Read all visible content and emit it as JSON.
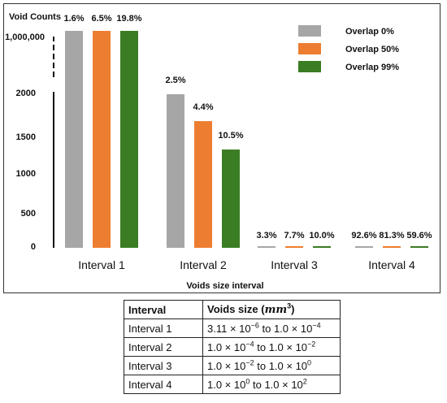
{
  "chart_data": {
    "type": "bar",
    "ylabel": "Void Counts",
    "xlabel": "Voids size interval",
    "y_ticks": [
      "1,000,000",
      "2000",
      "1500",
      "1000",
      "500",
      "0"
    ],
    "y_axis_broken": true,
    "categories": [
      "Interval 1",
      "Interval 2",
      "Interval 3",
      "Interval 4"
    ],
    "legend_position": "top-right",
    "series": [
      {
        "name": "Overlap 0%",
        "color": "#a6a6a6",
        "labels": [
          "1.6%",
          "2.5%",
          "3.3%",
          "92.6%"
        ],
        "values": [
          1000000,
          2000,
          3,
          10
        ]
      },
      {
        "name": "Overlap 50%",
        "color": "#ed7d31",
        "labels": [
          "6.5%",
          "4.4%",
          "7.7%",
          "81.3%"
        ],
        "values": [
          1000000,
          1650,
          5,
          13
        ]
      },
      {
        "name": "Overlap 99%",
        "color": "#3a7d22",
        "labels": [
          "19.8%",
          "10.5%",
          "10.0%",
          "59.6%"
        ],
        "values": [
          1000000,
          1280,
          8,
          12
        ]
      }
    ]
  },
  "table": {
    "header": {
      "interval": "Interval",
      "size_prefix": "Voids size (",
      "size_unit": "mm",
      "size_exp": "3",
      "size_suffix": ")"
    },
    "rows": [
      {
        "interval": "Interval 1",
        "a": "3.11 × 10",
        "a_exp": "−6",
        "mid": " to 1.0 × 10",
        "b_exp": "−4"
      },
      {
        "interval": "Interval 2",
        "a": "1.0 × 10",
        "a_exp": "−4",
        "mid": " to 1.0 × 10",
        "b_exp": "−2"
      },
      {
        "interval": "Interval 3",
        "a": "1.0 × 10",
        "a_exp": "−2",
        "mid": " to 1.0 × 10",
        "b_exp": "0"
      },
      {
        "interval": "Interval 4",
        "a": "1.0 × 10",
        "a_exp": "0",
        "mid": " to 1.0 × 10",
        "b_exp": "2"
      }
    ]
  }
}
